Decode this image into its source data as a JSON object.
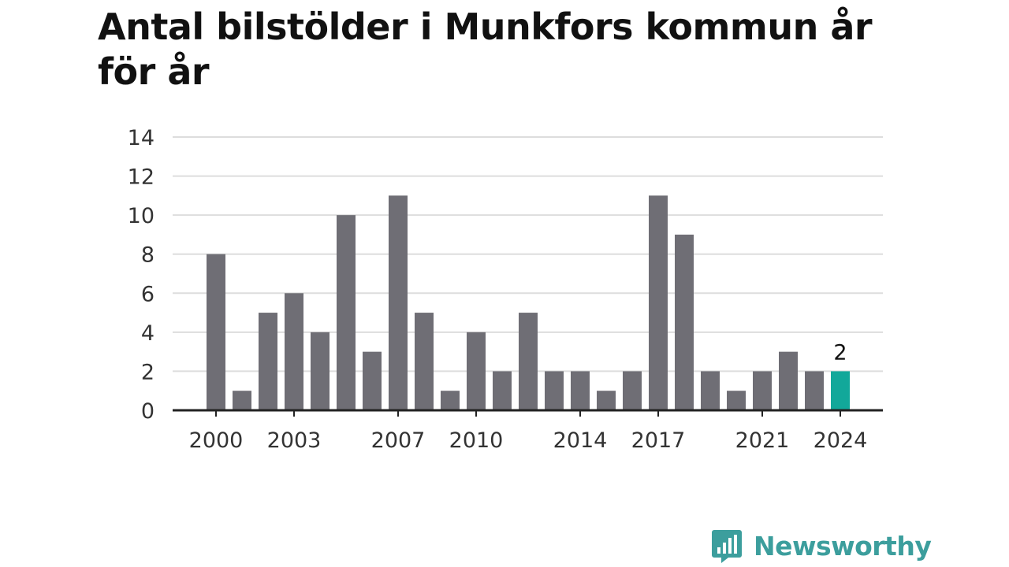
{
  "title": "Antal bilstölder i Munkfors kommun år för år",
  "brand": {
    "name": "Newsworthy",
    "icon": "newsworthy-logo-icon"
  },
  "colors": {
    "bar": "#6f6e75",
    "highlight": "#12a89a",
    "grid": "#dddddd",
    "axis": "#222222"
  },
  "chart_data": {
    "type": "bar",
    "title": "Antal bilstölder i Munkfors kommun år för år",
    "x": [
      2000,
      2001,
      2002,
      2003,
      2004,
      2005,
      2006,
      2007,
      2008,
      2009,
      2010,
      2011,
      2012,
      2013,
      2014,
      2015,
      2016,
      2017,
      2018,
      2019,
      2020,
      2021,
      2022,
      2023,
      2024
    ],
    "values": [
      8,
      1,
      5,
      6,
      4,
      10,
      3,
      11,
      5,
      1,
      4,
      2,
      5,
      2,
      2,
      1,
      2,
      11,
      9,
      2,
      1,
      2,
      3,
      2,
      2
    ],
    "x_tick_labels": [
      "2000",
      "2003",
      "2007",
      "2010",
      "2014",
      "2017",
      "2021",
      "2024"
    ],
    "y_ticks": [
      0,
      2,
      4,
      6,
      8,
      10,
      12,
      14
    ],
    "ylim": [
      0,
      14
    ],
    "grid": true,
    "highlight": {
      "x": 2024,
      "label": "2"
    },
    "xlabel": "",
    "ylabel": ""
  }
}
